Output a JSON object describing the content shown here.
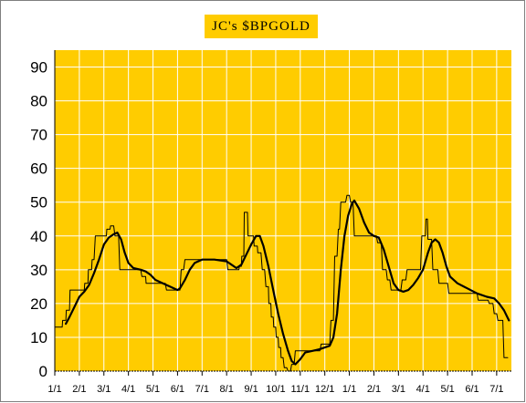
{
  "chart_data": {
    "type": "line",
    "title": "JC's $BPGOLD",
    "xlabel": "",
    "ylabel": "",
    "ylim": [
      0,
      95
    ],
    "yticks": [
      0,
      10,
      20,
      30,
      40,
      50,
      60,
      70,
      80,
      90
    ],
    "xlim": [
      0,
      18.6
    ],
    "x_tick_labels": [
      "1/1",
      "2/1",
      "3/1",
      "4/1",
      "5/1",
      "6/1",
      "7/1",
      "8/1",
      "9/1",
      "10/1",
      "11/1",
      "12/1",
      "1/1",
      "2/1",
      "3/1",
      "4/1",
      "5/1",
      "6/1",
      "7/1"
    ],
    "grid": true,
    "legend": "none",
    "colors": {
      "plot_bg": "#ffcc00",
      "grid": "#ffffff",
      "line": "#000000",
      "title_bg": "#ffcc00"
    },
    "series": [
      {
        "style": "step",
        "points": [
          [
            0.0,
            13
          ],
          [
            0.3,
            13
          ],
          [
            0.32,
            15
          ],
          [
            0.45,
            15
          ],
          [
            0.47,
            18
          ],
          [
            0.6,
            18
          ],
          [
            0.62,
            24
          ],
          [
            0.8,
            24
          ],
          [
            1.0,
            24
          ],
          [
            1.02,
            24
          ],
          [
            1.2,
            24
          ],
          [
            1.22,
            26
          ],
          [
            1.35,
            26
          ],
          [
            1.37,
            30
          ],
          [
            1.5,
            30
          ],
          [
            1.52,
            33
          ],
          [
            1.6,
            33
          ],
          [
            1.65,
            40
          ],
          [
            2.0,
            40
          ],
          [
            2.1,
            40
          ],
          [
            2.12,
            42
          ],
          [
            2.25,
            42
          ],
          [
            2.27,
            43
          ],
          [
            2.4,
            43
          ],
          [
            2.45,
            40
          ],
          [
            2.6,
            40
          ],
          [
            2.65,
            30
          ],
          [
            3.0,
            30
          ],
          [
            3.5,
            30
          ],
          [
            3.55,
            28
          ],
          [
            3.7,
            28
          ],
          [
            3.72,
            26
          ],
          [
            4.0,
            26
          ],
          [
            4.5,
            26
          ],
          [
            4.55,
            24
          ],
          [
            5.0,
            24
          ],
          [
            5.1,
            24
          ],
          [
            5.15,
            30
          ],
          [
            5.25,
            30
          ],
          [
            5.3,
            33
          ],
          [
            6.0,
            33
          ],
          [
            7.0,
            33
          ],
          [
            7.05,
            30
          ],
          [
            7.5,
            30
          ],
          [
            7.52,
            31
          ],
          [
            7.6,
            31
          ],
          [
            7.62,
            34
          ],
          [
            7.7,
            34
          ],
          [
            7.72,
            47
          ],
          [
            7.85,
            47
          ],
          [
            7.87,
            40
          ],
          [
            8.1,
            40
          ],
          [
            8.12,
            37
          ],
          [
            8.25,
            37
          ],
          [
            8.27,
            35
          ],
          [
            8.4,
            35
          ],
          [
            8.45,
            30
          ],
          [
            8.55,
            30
          ],
          [
            8.6,
            25
          ],
          [
            8.7,
            25
          ],
          [
            8.72,
            20
          ],
          [
            8.8,
            20
          ],
          [
            8.82,
            16
          ],
          [
            8.9,
            16
          ],
          [
            8.92,
            13
          ],
          [
            9.0,
            13
          ],
          [
            9.02,
            10
          ],
          [
            9.1,
            10
          ],
          [
            9.12,
            7
          ],
          [
            9.2,
            7
          ],
          [
            9.22,
            4
          ],
          [
            9.3,
            4
          ],
          [
            9.35,
            1
          ],
          [
            9.45,
            1
          ],
          [
            9.5,
            0
          ],
          [
            9.6,
            0
          ],
          [
            9.65,
            2
          ],
          [
            9.75,
            2
          ],
          [
            9.8,
            6
          ],
          [
            10.0,
            6
          ],
          [
            10.5,
            6
          ],
          [
            10.8,
            6
          ],
          [
            10.85,
            8
          ],
          [
            11.0,
            8
          ],
          [
            11.2,
            8
          ],
          [
            11.25,
            15
          ],
          [
            11.35,
            15
          ],
          [
            11.4,
            34
          ],
          [
            11.5,
            34
          ],
          [
            11.55,
            42
          ],
          [
            11.6,
            42
          ],
          [
            11.65,
            50
          ],
          [
            11.85,
            50
          ],
          [
            11.9,
            52
          ],
          [
            12.0,
            52
          ],
          [
            12.05,
            50
          ],
          [
            12.15,
            50
          ],
          [
            12.2,
            40
          ],
          [
            13.0,
            40
          ],
          [
            13.1,
            40
          ],
          [
            13.15,
            38
          ],
          [
            13.3,
            38
          ],
          [
            13.35,
            30
          ],
          [
            13.5,
            30
          ],
          [
            13.55,
            27
          ],
          [
            13.65,
            27
          ],
          [
            13.7,
            24
          ],
          [
            14.0,
            24
          ],
          [
            14.1,
            24
          ],
          [
            14.15,
            27
          ],
          [
            14.3,
            27
          ],
          [
            14.35,
            30
          ],
          [
            14.9,
            30
          ],
          [
            14.95,
            40
          ],
          [
            15.1,
            40
          ],
          [
            15.12,
            45
          ],
          [
            15.18,
            45
          ],
          [
            15.2,
            39
          ],
          [
            15.35,
            39
          ],
          [
            15.4,
            30
          ],
          [
            15.6,
            30
          ],
          [
            15.65,
            26
          ],
          [
            16.0,
            26
          ],
          [
            16.05,
            23
          ],
          [
            17.2,
            23
          ],
          [
            17.25,
            21
          ],
          [
            17.65,
            21
          ],
          [
            17.7,
            20
          ],
          [
            17.85,
            20
          ],
          [
            17.9,
            17
          ],
          [
            18.0,
            17
          ],
          [
            18.05,
            15
          ],
          [
            18.25,
            15
          ],
          [
            18.3,
            4
          ],
          [
            18.45,
            4
          ]
        ]
      },
      {
        "style": "smooth",
        "points": [
          [
            0.45,
            14
          ],
          [
            0.6,
            16
          ],
          [
            0.8,
            19
          ],
          [
            1.0,
            22
          ],
          [
            1.2,
            23.5
          ],
          [
            1.4,
            25.5
          ],
          [
            1.6,
            29
          ],
          [
            1.8,
            33
          ],
          [
            2.0,
            37.5
          ],
          [
            2.2,
            39.5
          ],
          [
            2.4,
            40.5
          ],
          [
            2.55,
            41
          ],
          [
            2.7,
            39
          ],
          [
            2.85,
            35
          ],
          [
            3.0,
            32
          ],
          [
            3.2,
            30.5
          ],
          [
            3.5,
            30
          ],
          [
            3.7,
            29.5
          ],
          [
            3.9,
            28.5
          ],
          [
            4.1,
            27
          ],
          [
            4.4,
            26
          ],
          [
            4.7,
            25
          ],
          [
            5.0,
            24
          ],
          [
            5.1,
            24.5
          ],
          [
            5.3,
            27
          ],
          [
            5.5,
            30
          ],
          [
            5.7,
            32
          ],
          [
            6.0,
            33
          ],
          [
            6.5,
            33
          ],
          [
            7.0,
            32.5
          ],
          [
            7.2,
            31.5
          ],
          [
            7.4,
            30.5
          ],
          [
            7.6,
            31.5
          ],
          [
            7.8,
            34.5
          ],
          [
            8.0,
            37.5
          ],
          [
            8.2,
            40
          ],
          [
            8.35,
            40
          ],
          [
            8.5,
            37
          ],
          [
            8.7,
            31
          ],
          [
            8.9,
            24
          ],
          [
            9.1,
            17
          ],
          [
            9.3,
            11
          ],
          [
            9.5,
            6
          ],
          [
            9.65,
            3
          ],
          [
            9.8,
            2
          ],
          [
            10.0,
            3.5
          ],
          [
            10.2,
            5.5
          ],
          [
            10.5,
            6
          ],
          [
            10.8,
            6.5
          ],
          [
            11.0,
            7
          ],
          [
            11.2,
            7.5
          ],
          [
            11.35,
            10
          ],
          [
            11.5,
            17
          ],
          [
            11.65,
            30
          ],
          [
            11.8,
            40
          ],
          [
            11.95,
            46
          ],
          [
            12.1,
            49.5
          ],
          [
            12.2,
            50.5
          ],
          [
            12.4,
            48
          ],
          [
            12.6,
            44
          ],
          [
            12.8,
            41
          ],
          [
            13.0,
            40
          ],
          [
            13.2,
            39.5
          ],
          [
            13.4,
            36
          ],
          [
            13.6,
            31
          ],
          [
            13.8,
            26
          ],
          [
            14.0,
            24
          ],
          [
            14.2,
            23.5
          ],
          [
            14.4,
            24
          ],
          [
            14.6,
            25.5
          ],
          [
            14.8,
            27.5
          ],
          [
            15.0,
            30
          ],
          [
            15.2,
            35
          ],
          [
            15.35,
            38
          ],
          [
            15.5,
            39
          ],
          [
            15.65,
            38
          ],
          [
            15.8,
            35
          ],
          [
            15.95,
            31
          ],
          [
            16.1,
            28
          ],
          [
            16.4,
            26
          ],
          [
            16.8,
            24.5
          ],
          [
            17.2,
            23
          ],
          [
            17.6,
            22
          ],
          [
            17.9,
            21.5
          ],
          [
            18.1,
            20
          ],
          [
            18.3,
            18
          ],
          [
            18.5,
            15
          ]
        ]
      }
    ]
  }
}
